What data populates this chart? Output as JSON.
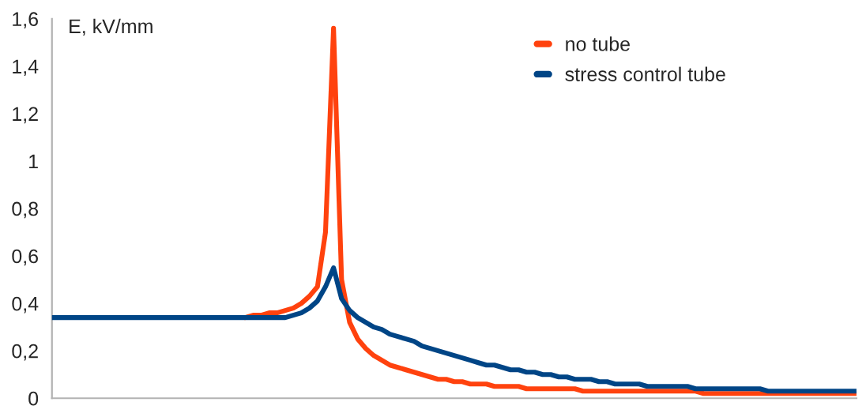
{
  "chart_data": {
    "type": "line",
    "ylabel": "E, kV/mm",
    "categories": [
      null,
      null,
      null,
      null,
      null,
      null,
      null,
      null,
      null,
      null,
      null,
      null,
      null,
      null,
      null,
      null,
      null,
      null,
      null,
      null,
      null,
      null,
      null,
      null,
      null,
      null,
      null,
      null,
      null,
      null,
      null,
      null,
      null,
      null,
      null,
      null,
      null,
      null,
      null,
      null,
      null,
      null,
      null,
      null,
      null,
      null,
      null,
      null,
      null,
      null,
      null,
      null,
      null,
      null,
      null,
      null,
      null,
      null,
      null,
      null,
      null,
      null,
      null,
      null,
      null,
      null,
      null,
      null,
      null,
      null,
      null,
      null,
      null,
      null,
      null,
      null,
      null,
      null,
      null,
      null,
      null,
      null,
      null,
      null,
      null,
      null,
      null,
      null,
      null,
      null,
      null,
      null,
      null,
      null,
      null,
      null,
      null,
      null,
      null,
      null,
      null
    ],
    "series": [
      {
        "name": "no tube",
        "color": "#ff420e",
        "values": [
          null,
          null,
          null,
          null,
          null,
          null,
          null,
          null,
          null,
          null,
          null,
          null,
          null,
          null,
          null,
          null,
          null,
          null,
          null,
          null,
          null,
          null,
          null,
          null,
          0.34,
          0.35,
          0.35,
          0.36,
          0.36,
          0.37,
          0.38,
          0.4,
          0.43,
          0.47,
          0.7,
          1.56,
          0.5,
          0.32,
          0.25,
          0.21,
          0.18,
          0.16,
          0.14,
          0.13,
          0.12,
          0.11,
          0.1,
          0.09,
          0.08,
          0.08,
          0.07,
          0.07,
          0.06,
          0.06,
          0.06,
          0.05,
          0.05,
          0.05,
          0.05,
          0.04,
          0.04,
          0.04,
          0.04,
          0.04,
          0.04,
          0.04,
          0.03,
          0.03,
          0.03,
          0.03,
          0.03,
          0.03,
          0.03,
          0.03,
          0.03,
          0.03,
          0.03,
          0.03,
          0.03,
          0.03,
          0.03,
          0.02,
          0.02,
          0.02,
          0.02,
          0.02,
          0.02,
          0.02,
          0.02,
          0.02,
          0.02,
          0.02,
          0.02,
          0.02,
          0.02,
          0.02,
          0.02,
          0.02,
          0.02,
          0.02,
          0.02
        ]
      },
      {
        "name": "stress control tube",
        "color": "#004586",
        "values": [
          0.34,
          0.34,
          0.34,
          0.34,
          0.34,
          0.34,
          0.34,
          0.34,
          0.34,
          0.34,
          0.34,
          0.34,
          0.34,
          0.34,
          0.34,
          0.34,
          0.34,
          0.34,
          0.34,
          0.34,
          0.34,
          0.34,
          0.34,
          0.34,
          0.34,
          0.34,
          0.34,
          0.34,
          0.34,
          0.34,
          0.35,
          0.36,
          0.38,
          0.41,
          0.47,
          0.55,
          0.42,
          0.37,
          0.34,
          0.32,
          0.3,
          0.29,
          0.27,
          0.26,
          0.25,
          0.24,
          0.22,
          0.21,
          0.2,
          0.19,
          0.18,
          0.17,
          0.16,
          0.15,
          0.14,
          0.14,
          0.13,
          0.12,
          0.12,
          0.11,
          0.11,
          0.1,
          0.1,
          0.09,
          0.09,
          0.08,
          0.08,
          0.08,
          0.07,
          0.07,
          0.06,
          0.06,
          0.06,
          0.06,
          0.05,
          0.05,
          0.05,
          0.05,
          0.05,
          0.05,
          0.04,
          0.04,
          0.04,
          0.04,
          0.04,
          0.04,
          0.04,
          0.04,
          0.04,
          0.03,
          0.03,
          0.03,
          0.03,
          0.03,
          0.03,
          0.03,
          0.03,
          0.03,
          0.03,
          0.03,
          0.03
        ]
      }
    ],
    "ylim": [
      0,
      1.6
    ],
    "yticks": [
      0,
      {
        "value": 0.2,
        "label": "0,2"
      },
      {
        "value": 0.4,
        "label": "0,4"
      },
      {
        "value": 0.6,
        "label": "0,6"
      },
      {
        "value": 0.8,
        "label": "0,8"
      },
      1,
      {
        "value": 1.2,
        "label": "1,2"
      },
      {
        "value": 1.4,
        "label": "1,4"
      },
      {
        "value": 1.6,
        "label": "1,6"
      }
    ],
    "tick_labels": "y",
    "legend": "top right",
    "marker": "none",
    "line_style": "solid",
    "grid": false
  }
}
